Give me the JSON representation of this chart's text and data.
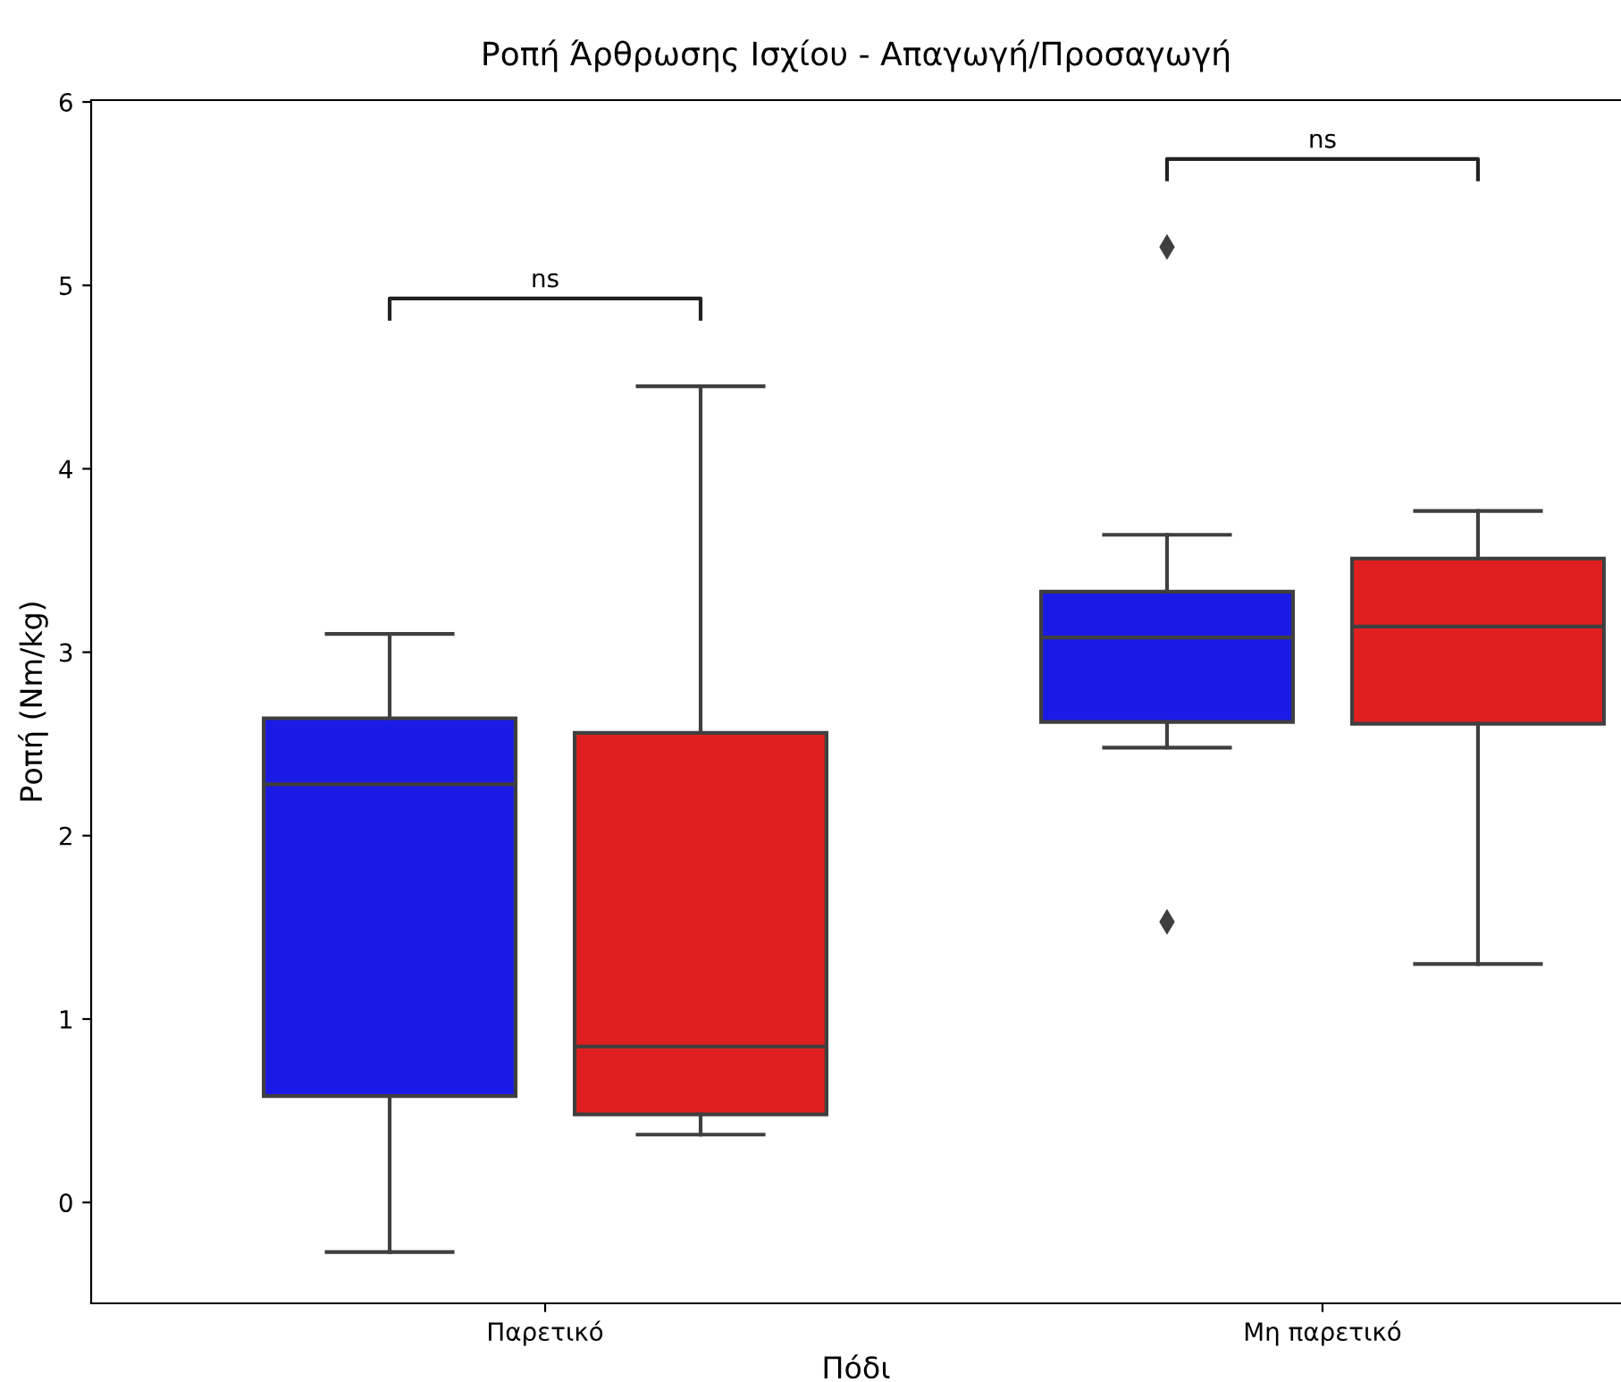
{
  "chart_data": {
    "type": "box",
    "title": "Ροπή Άρθρωσης Ισχίου - Απαγωγή/Προσαγωγή",
    "xlabel": "Πόδι",
    "ylabel": "Ροπή (Nm/kg)",
    "categories": [
      "Παρετικό",
      "Μη παρετικό"
    ],
    "series": [
      {
        "color": "#1a1ae6",
        "boxes": [
          {
            "low": -0.27,
            "q1": 0.58,
            "median": 2.28,
            "q3": 2.64,
            "high": 3.1
          },
          {
            "low": 2.48,
            "q1": 2.62,
            "median": 3.08,
            "q3": 3.33,
            "high": 3.64,
            "outliers": [
              5.21,
              1.53
            ]
          }
        ]
      },
      {
        "color": "#e02020",
        "boxes": [
          {
            "low": 0.37,
            "q1": 0.48,
            "median": 0.85,
            "q3": 2.56,
            "high": 4.45
          },
          {
            "low": 1.3,
            "q1": 2.61,
            "median": 3.14,
            "q3": 3.51,
            "high": 3.77
          }
        ]
      }
    ],
    "ylim": [
      -0.55,
      6.01
    ],
    "yticks": [
      0,
      1,
      2,
      3,
      4,
      5,
      6
    ],
    "grid": false,
    "legend": false,
    "annotations": [
      "ns",
      "ns"
    ]
  }
}
